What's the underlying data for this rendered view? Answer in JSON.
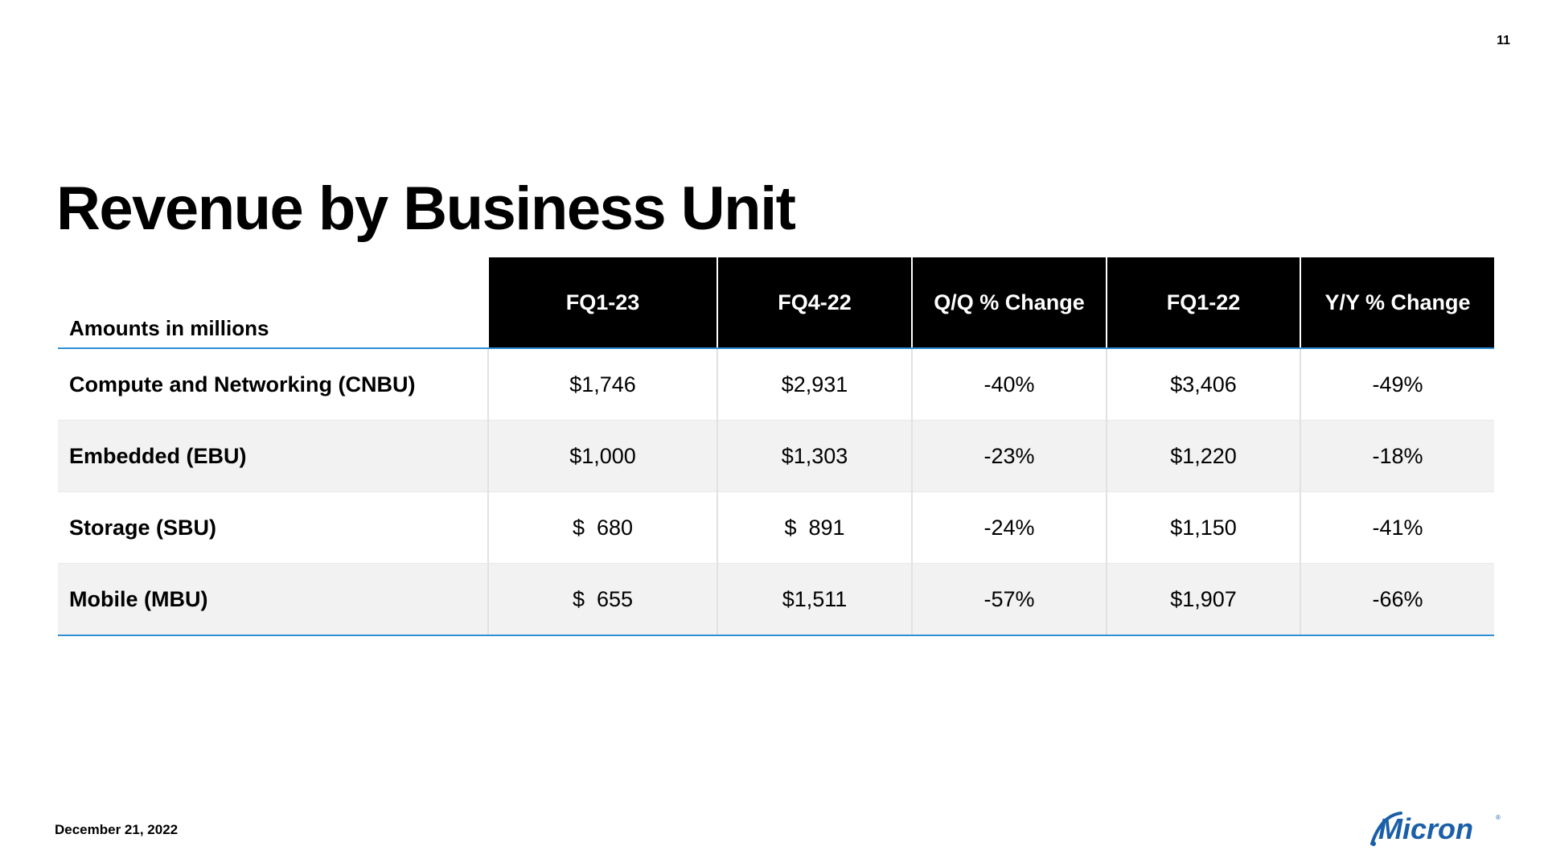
{
  "slide": {
    "page_number": "11",
    "title": "Revenue by Business Unit",
    "footer_date": "December 21, 2022",
    "brand_color": "#1a5fa8",
    "rule_color": "#2f8fd6"
  },
  "table": {
    "units_label": "Amounts in millions",
    "columns": [
      "FQ1-23",
      "FQ4-22",
      "Q/Q % Change",
      "FQ1-22",
      "Y/Y % Change"
    ],
    "rows": [
      {
        "label": "Compute and Networking (CNBU)",
        "cells": [
          "$1,746",
          "$2,931",
          "-40%",
          "$3,406",
          "-49%"
        ]
      },
      {
        "label": "Embedded (EBU)",
        "cells": [
          "$1,000",
          "$1,303",
          "-23%",
          "$1,220",
          "-18%"
        ]
      },
      {
        "label": "Storage (SBU)",
        "cells": [
          "$  680",
          "$  891",
          "-24%",
          "$1,150",
          "-41%"
        ]
      },
      {
        "label": "Mobile (MBU)",
        "cells": [
          "$  655",
          "$1,511",
          "-57%",
          "$1,907",
          "-66%"
        ]
      }
    ]
  },
  "logo": {
    "text": "Micron",
    "icon": "micron-logo-icon"
  }
}
